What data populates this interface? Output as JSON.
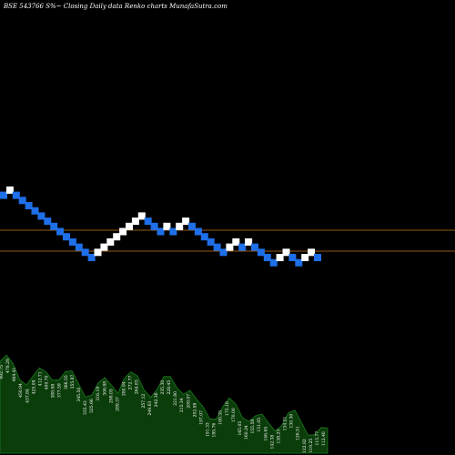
{
  "chart_data": {
    "type": "renko",
    "title": "BSE 543766  S%~  Closing Daily data  Renko  charts MunafaSutra.com",
    "colors": {
      "background": "#000000",
      "up_brick": "#ffffff",
      "down_brick": "#1e6fe8",
      "reference_line": "#c8741e",
      "volume_fill": "#0b3d0b",
      "volume_stroke": "#1f7a1f"
    },
    "bricks": [
      {
        "i": 0,
        "level": 12,
        "dir": "down"
      },
      {
        "i": 1,
        "level": 13,
        "dir": "up"
      },
      {
        "i": 2,
        "level": 12,
        "dir": "down"
      },
      {
        "i": 3,
        "level": 11,
        "dir": "down"
      },
      {
        "i": 4,
        "level": 10,
        "dir": "down"
      },
      {
        "i": 5,
        "level": 9,
        "dir": "down"
      },
      {
        "i": 6,
        "level": 8,
        "dir": "down"
      },
      {
        "i": 7,
        "level": 7,
        "dir": "down"
      },
      {
        "i": 8,
        "level": 6,
        "dir": "down"
      },
      {
        "i": 9,
        "level": 5,
        "dir": "down"
      },
      {
        "i": 10,
        "level": 4,
        "dir": "down"
      },
      {
        "i": 11,
        "level": 3,
        "dir": "down"
      },
      {
        "i": 12,
        "level": 2,
        "dir": "down"
      },
      {
        "i": 13,
        "level": 1,
        "dir": "down"
      },
      {
        "i": 14,
        "level": 0,
        "dir": "down"
      },
      {
        "i": 15,
        "level": 1,
        "dir": "up"
      },
      {
        "i": 16,
        "level": 2,
        "dir": "up"
      },
      {
        "i": 17,
        "level": 3,
        "dir": "up"
      },
      {
        "i": 18,
        "level": 4,
        "dir": "up"
      },
      {
        "i": 19,
        "level": 5,
        "dir": "up"
      },
      {
        "i": 20,
        "level": 6,
        "dir": "up"
      },
      {
        "i": 21,
        "level": 7,
        "dir": "up"
      },
      {
        "i": 22,
        "level": 8,
        "dir": "up"
      },
      {
        "i": 23,
        "level": 7,
        "dir": "down"
      },
      {
        "i": 24,
        "level": 6,
        "dir": "down"
      },
      {
        "i": 25,
        "level": 5,
        "dir": "down"
      },
      {
        "i": 26,
        "level": 6,
        "dir": "up"
      },
      {
        "i": 27,
        "level": 5,
        "dir": "down"
      },
      {
        "i": 28,
        "level": 6,
        "dir": "up"
      },
      {
        "i": 29,
        "level": 7,
        "dir": "up"
      },
      {
        "i": 30,
        "level": 6,
        "dir": "down"
      },
      {
        "i": 31,
        "level": 5,
        "dir": "down"
      },
      {
        "i": 32,
        "level": 4,
        "dir": "down"
      },
      {
        "i": 33,
        "level": 3,
        "dir": "down"
      },
      {
        "i": 34,
        "level": 2,
        "dir": "down"
      },
      {
        "i": 35,
        "level": 1,
        "dir": "down"
      },
      {
        "i": 36,
        "level": 2,
        "dir": "up"
      },
      {
        "i": 37,
        "level": 3,
        "dir": "up"
      },
      {
        "i": 38,
        "level": 2,
        "dir": "down"
      },
      {
        "i": 39,
        "level": 3,
        "dir": "up"
      },
      {
        "i": 40,
        "level": 2,
        "dir": "down"
      },
      {
        "i": 41,
        "level": 1,
        "dir": "down"
      },
      {
        "i": 42,
        "level": 0,
        "dir": "down"
      },
      {
        "i": 43,
        "level": -1,
        "dir": "down"
      },
      {
        "i": 44,
        "level": 0,
        "dir": "up"
      },
      {
        "i": 45,
        "level": 1,
        "dir": "up"
      },
      {
        "i": 46,
        "level": 0,
        "dir": "down"
      },
      {
        "i": 47,
        "level": -1,
        "dir": "down"
      },
      {
        "i": 48,
        "level": 0,
        "dir": "up"
      },
      {
        "i": 49,
        "level": 1,
        "dir": "up"
      },
      {
        "i": 50,
        "level": 0,
        "dir": "down"
      }
    ],
    "volume_labels": [
      "492.75",
      "478.29",
      "464.41",
      "450.94",
      "437.84",
      "425.09",
      "412.71",
      "400.70",
      "388.98",
      "377.59",
      "366.55",
      "355.87",
      "345.50",
      "335.43",
      "325.66",
      "316.19",
      "306.98",
      "298.05",
      "289.37",
      "280.94",
      "272.77",
      "264.83",
      "257.12",
      "249.63",
      "242.36",
      "235.30",
      "228.45",
      "221.80",
      "215.34",
      "209.07",
      "202.98",
      "197.07",
      "191.33",
      "185.76",
      "180.35",
      "175.10",
      "170.00",
      "165.05",
      "160.24",
      "155.58",
      "151.05",
      "146.65",
      "142.38",
      "138.23",
      "134.21",
      "130.30",
      "126.51",
      "122.82",
      "119.25",
      "115.77",
      "112.40"
    ]
  }
}
